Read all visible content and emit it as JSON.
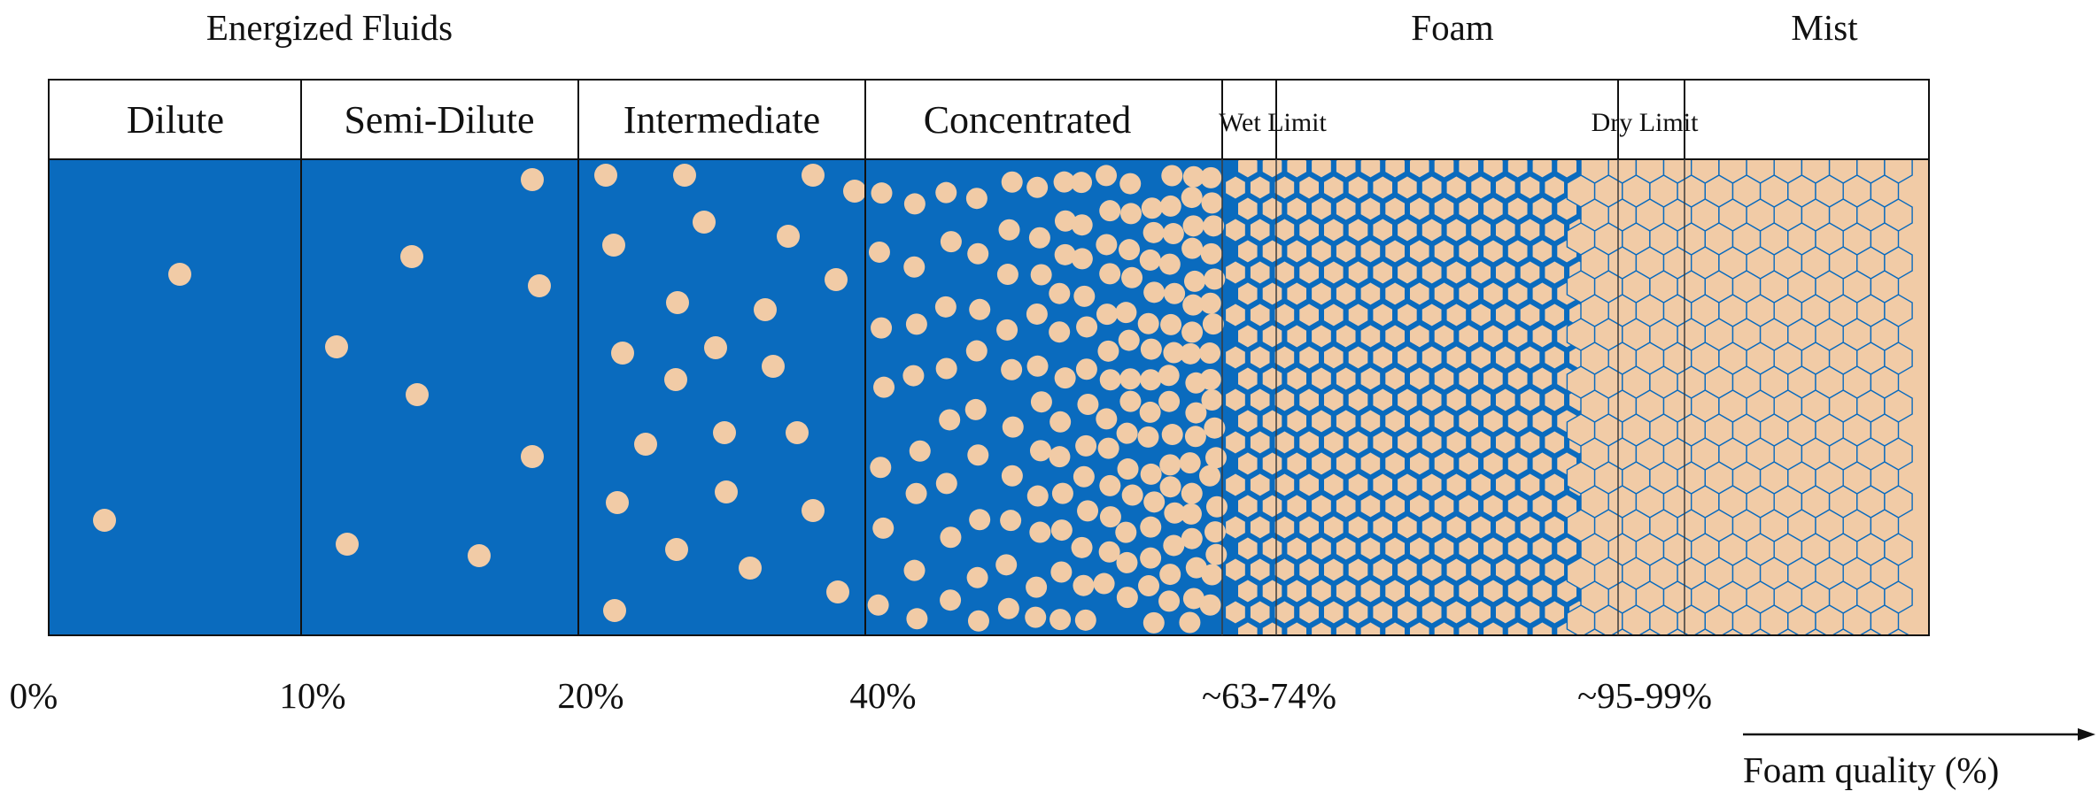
{
  "top_labels": {
    "energized": "Energized Fluids",
    "foam": "Foam",
    "mist": "Mist"
  },
  "regimes": [
    "Dilute",
    "Semi-Dilute",
    "Intermediate",
    "Concentrated"
  ],
  "limits": {
    "wet": "Wet Limit",
    "dry": "Dry Limit"
  },
  "ticks": [
    "0%",
    "10%",
    "20%",
    "40%",
    "~63-74%",
    "~95-99%"
  ],
  "axis_title": "Foam quality (%)",
  "colors": {
    "liquid": "#0A6BBE",
    "gas": "#F1CBA6",
    "line": "#111111"
  }
}
